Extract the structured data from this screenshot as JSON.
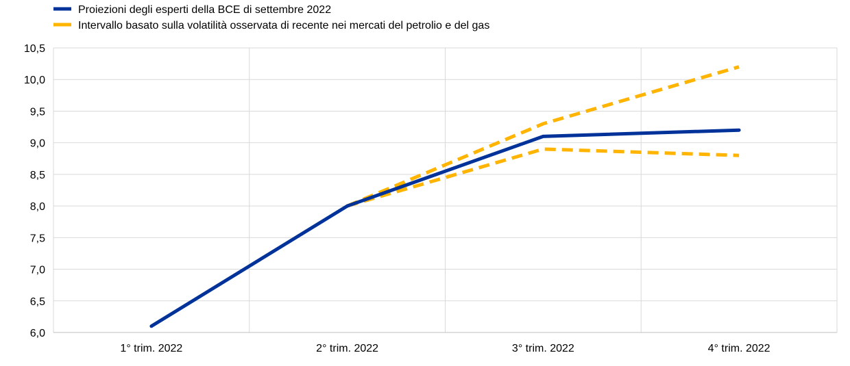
{
  "chart_data": {
    "type": "line",
    "title": "",
    "xlabel": "",
    "ylabel": "",
    "categories": [
      "1° trim.  2022",
      "2° trim.  2022",
      "3° trim.  2022",
      "4° trim.  2022"
    ],
    "ylim": [
      6.0,
      10.5
    ],
    "yticks": [
      "6,0",
      "6,5",
      "7,0",
      "7,5",
      "8,0",
      "8,5",
      "9,0",
      "9,5",
      "10,0",
      "10,5"
    ],
    "grid": true,
    "legend": "top-left",
    "series": [
      {
        "name": "Proiezioni degli esperti della BCE di settembre 2022",
        "style": "solid",
        "color": "#003299",
        "values": [
          6.1,
          8.0,
          9.1,
          9.2
        ]
      },
      {
        "name": "Intervallo basato sulla volatilità osservata di recente nei mercati del petrolio e del gas",
        "style": "dashed",
        "color": "#FFB400",
        "values": [
          null,
          8.0,
          9.3,
          10.2
        ]
      },
      {
        "name": "",
        "style": "dashed",
        "color": "#FFB400",
        "values": [
          null,
          8.0,
          8.9,
          8.8
        ]
      }
    ]
  }
}
